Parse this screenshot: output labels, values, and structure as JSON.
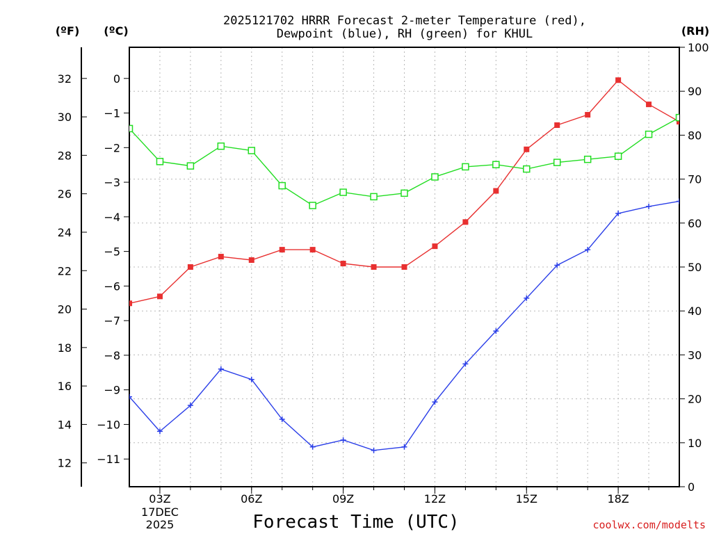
{
  "chart_data": {
    "type": "line",
    "title_lines": [
      "2025121702 HRRR Forecast 2-meter Temperature (red),",
      "Dewpoint (blue), RH (green) for KHUL"
    ],
    "xlabel": "Forecast Time (UTC)",
    "credit": "coolwx.com/modelts",
    "units": {
      "fahrenheit": "(ºF)",
      "celsius": "(ºC)",
      "rh": "(RH)"
    },
    "x_hours": [
      2,
      3,
      4,
      5,
      6,
      7,
      8,
      9,
      10,
      11,
      12,
      13,
      14,
      15,
      16,
      17,
      18,
      19,
      20
    ],
    "xlim": [
      2,
      20
    ],
    "x_ticks": [
      {
        "hour": 3,
        "label": "03Z"
      },
      {
        "hour": 6,
        "label": "06Z"
      },
      {
        "hour": 9,
        "label": "09Z"
      },
      {
        "hour": 12,
        "label": "12Z"
      },
      {
        "hour": 15,
        "label": "15Z"
      },
      {
        "hour": 18,
        "label": "18Z"
      }
    ],
    "date_label": [
      "17DEC",
      "2025"
    ],
    "celsius_ylim": [
      -11.8,
      0.9
    ],
    "celsius_ticks": [
      "0",
      "−1",
      "−2",
      "−3",
      "−4",
      "−5",
      "−6",
      "−7",
      "−8",
      "−9",
      "−10",
      "−11"
    ],
    "fahrenheit_ticks": [
      "12",
      "14",
      "16",
      "18",
      "20",
      "22",
      "24",
      "26",
      "28",
      "30",
      "32"
    ],
    "rh_ylim": [
      0,
      100
    ],
    "rh_ticks": [
      "0",
      "10",
      "20",
      "30",
      "40",
      "50",
      "60",
      "70",
      "80",
      "90",
      "100"
    ],
    "series": [
      {
        "name": "Temperature",
        "axis": "celsius",
        "color": "#e83030",
        "marker": "filled-square",
        "values": [
          -6.5,
          -6.3,
          -5.45,
          -5.15,
          -5.25,
          -4.95,
          -4.95,
          -5.35,
          -5.45,
          -5.45,
          -4.85,
          -4.15,
          -3.25,
          -2.05,
          -1.35,
          -1.05,
          -0.05,
          -0.75,
          -1.25
        ]
      },
      {
        "name": "Dewpoint",
        "axis": "celsius",
        "color": "#2a3ee8",
        "marker": "plus",
        "values": [
          -9.2,
          -10.2,
          -9.45,
          -8.4,
          -8.7,
          -9.85,
          -10.65,
          -10.45,
          -10.75,
          -10.65,
          -9.35,
          -8.25,
          -7.3,
          -6.35,
          -5.4,
          -4.95,
          -3.9,
          -3.7,
          -3.55
        ]
      },
      {
        "name": "Relative Humidity",
        "axis": "rh",
        "color": "#22dd22",
        "marker": "open-square",
        "values": [
          81.5,
          74.0,
          73.0,
          77.5,
          76.5,
          68.5,
          64.0,
          67.0,
          66.0,
          66.8,
          70.5,
          72.8,
          73.3,
          72.3,
          73.8,
          74.5,
          75.2,
          80.2,
          84.0
        ]
      }
    ]
  }
}
